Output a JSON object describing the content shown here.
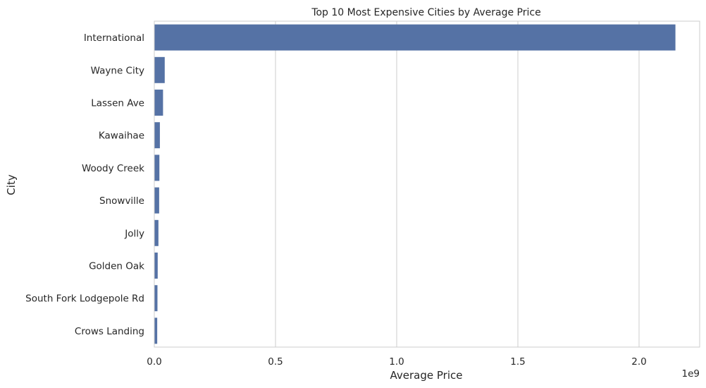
{
  "chart_data": {
    "type": "bar",
    "orientation": "horizontal",
    "title": "Top 10 Most Expensive Cities by Average Price",
    "xlabel": "Average Price",
    "ylabel": "City",
    "x_scale_label": "1e9",
    "xlim": [
      0,
      2.25
    ],
    "x_ticks": [
      0,
      0.5,
      1.0,
      1.5,
      2.0
    ],
    "x_tick_labels": [
      "0.0",
      "0.5",
      "1.0",
      "1.5",
      "2.0"
    ],
    "grid": "vertical",
    "bar_color": "#5572a5",
    "categories": [
      "International",
      "Wayne City",
      "Lassen Ave",
      "Kawaihae",
      "Woody Creek",
      "Snowville",
      "Jolly",
      "Golden Oak",
      "South Fork Lodgepole Rd",
      "Crows Landing"
    ],
    "values": [
      2.15,
      0.043,
      0.036,
      0.023,
      0.021,
      0.02,
      0.017,
      0.014,
      0.013,
      0.012
    ]
  }
}
